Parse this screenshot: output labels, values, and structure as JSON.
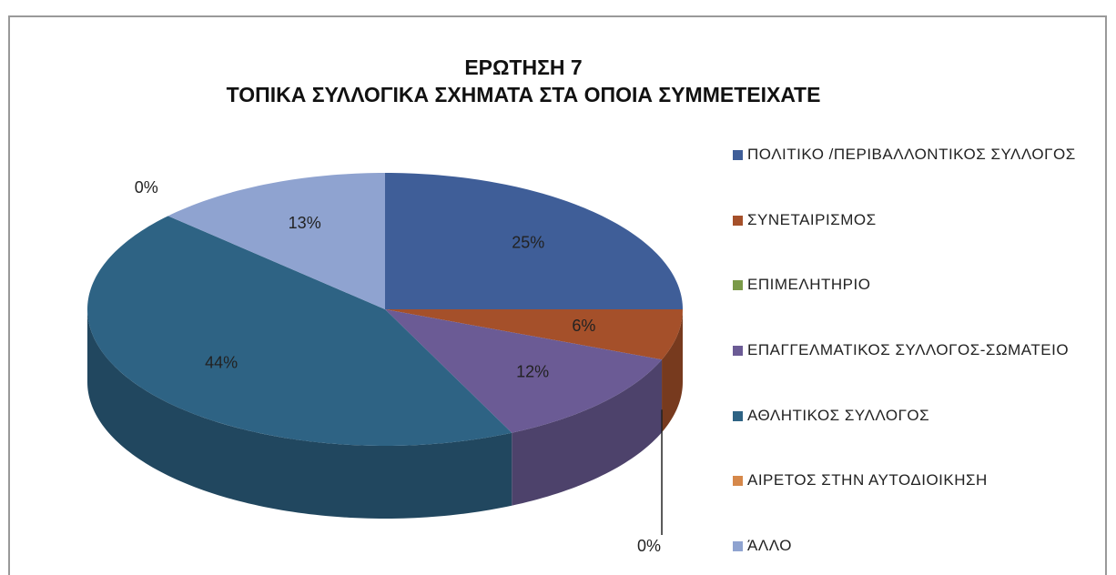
{
  "chart_data": {
    "type": "pie",
    "title": "ΕΡΩΤΗΣΗ 7",
    "subtitle": "ΤΟΠΙΚΑ ΣΥΛΛΟΓΙΚΑ ΣΧΗΜΑΤΑ ΣΤΑ ΟΠΟΙΑ ΣΥΜΜΕΤΕΙΧΑΤΕ",
    "categories": [
      "ΠΟΛΙΤΙΚΟ /ΠΕΡΙΒΑΛΛΟΝΤΙΚΟΣ ΣΥΛΛΟΓΟΣ",
      "ΣΥΝΕΤΑΙΡΙΣΜΟΣ",
      "ΕΠΙΜΕΛΗΤΗΡΙΟ",
      "ΕΠΑΓΓΕΛΜΑΤΙΚΟΣ ΣΥΛΛΟΓΟΣ-ΣΩΜΑΤΕΙΟ",
      "ΑΘΛΗΤΙΚΟΣ ΣΥΛΛΟΓΟΣ",
      "ΑΙΡΕΤΟΣ ΣΤΗΝ ΑΥΤΟΔΙΟΙΚΗΣΗ",
      "ΆΛΛΟ"
    ],
    "values": [
      25,
      6,
      0,
      12,
      44,
      0,
      13
    ],
    "value_labels": [
      "25%",
      "6%",
      "0%",
      "12%",
      "44%",
      "0%",
      "13%"
    ],
    "colors": [
      "#3f5e98",
      "#a5502a",
      "#7a9a48",
      "#6b5b95",
      "#2e6384",
      "#d6884a",
      "#8fa3d0"
    ],
    "legend": "right"
  }
}
